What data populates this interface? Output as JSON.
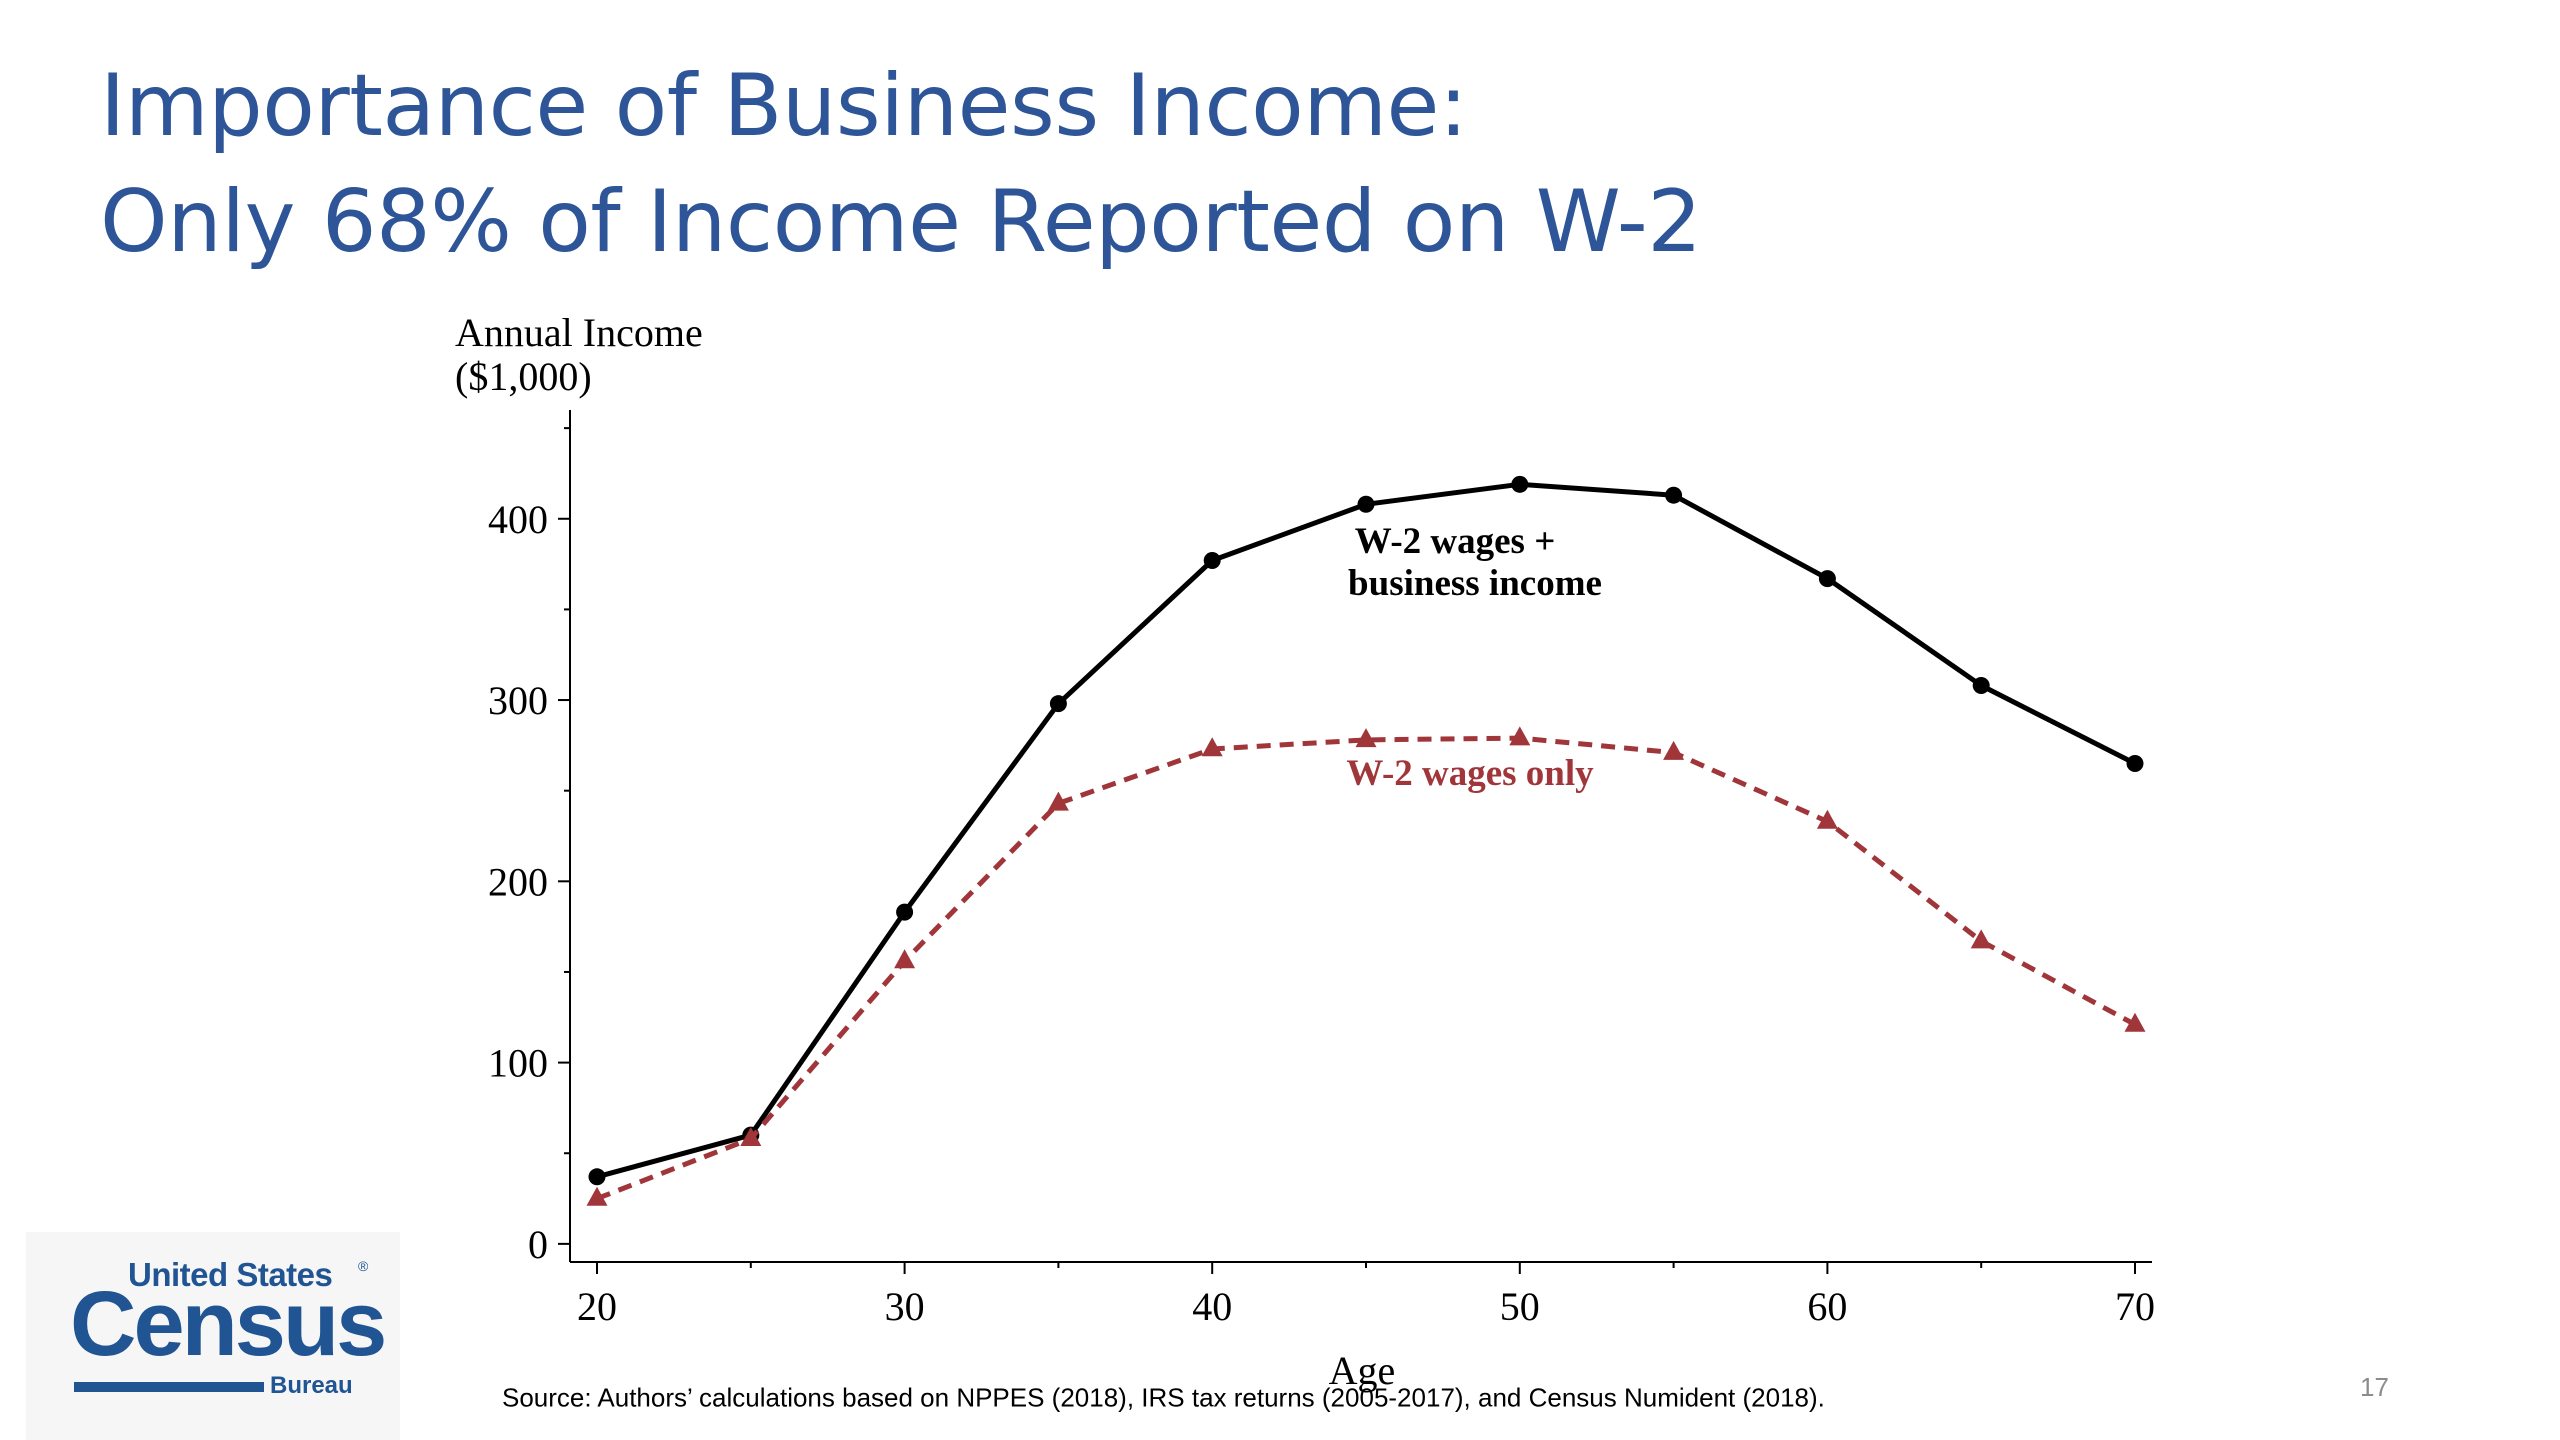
{
  "slide": {
    "title_line1": "Importance of Business Income:",
    "title_line2": "Only 68% of Income Reported on W-2",
    "source": "Source: Authors’ calculations based on NPPES (2018), IRS tax returns (2005-2017), and Census Numident (2018).",
    "page_number": "17",
    "title_color": "#2e5597"
  },
  "logo": {
    "line1": "United States",
    "registered": "®",
    "line2": "Census",
    "line3": "Bureau",
    "color": "#205493"
  },
  "chart_data": {
    "type": "line",
    "title": "",
    "ylabel_line1": "Annual Income",
    "ylabel_line2": "($1,000)",
    "xlabel": "Age",
    "x": [
      20,
      25,
      30,
      35,
      40,
      45,
      50,
      55,
      60,
      65,
      70
    ],
    "xlim": [
      20,
      70
    ],
    "xticks": [
      20,
      30,
      40,
      50,
      60,
      70
    ],
    "ylim": [
      -10,
      460
    ],
    "yticks": [
      0,
      100,
      200,
      300,
      400
    ],
    "grid": false,
    "legend": "none (inline labels)",
    "series": [
      {
        "name_line1": "W-2 wages +",
        "name_line2": "business income",
        "values": [
          37,
          60,
          183,
          298,
          377,
          408,
          419,
          413,
          367,
          308,
          265
        ],
        "color": "#000000",
        "marker": "circle",
        "style": "solid"
      },
      {
        "name": "W-2 wages only",
        "values": [
          25,
          58,
          156,
          243,
          273,
          278,
          279,
          271,
          233,
          167,
          121
        ],
        "color": "#a0363a",
        "marker": "triangle",
        "style": "dashed"
      }
    ]
  }
}
